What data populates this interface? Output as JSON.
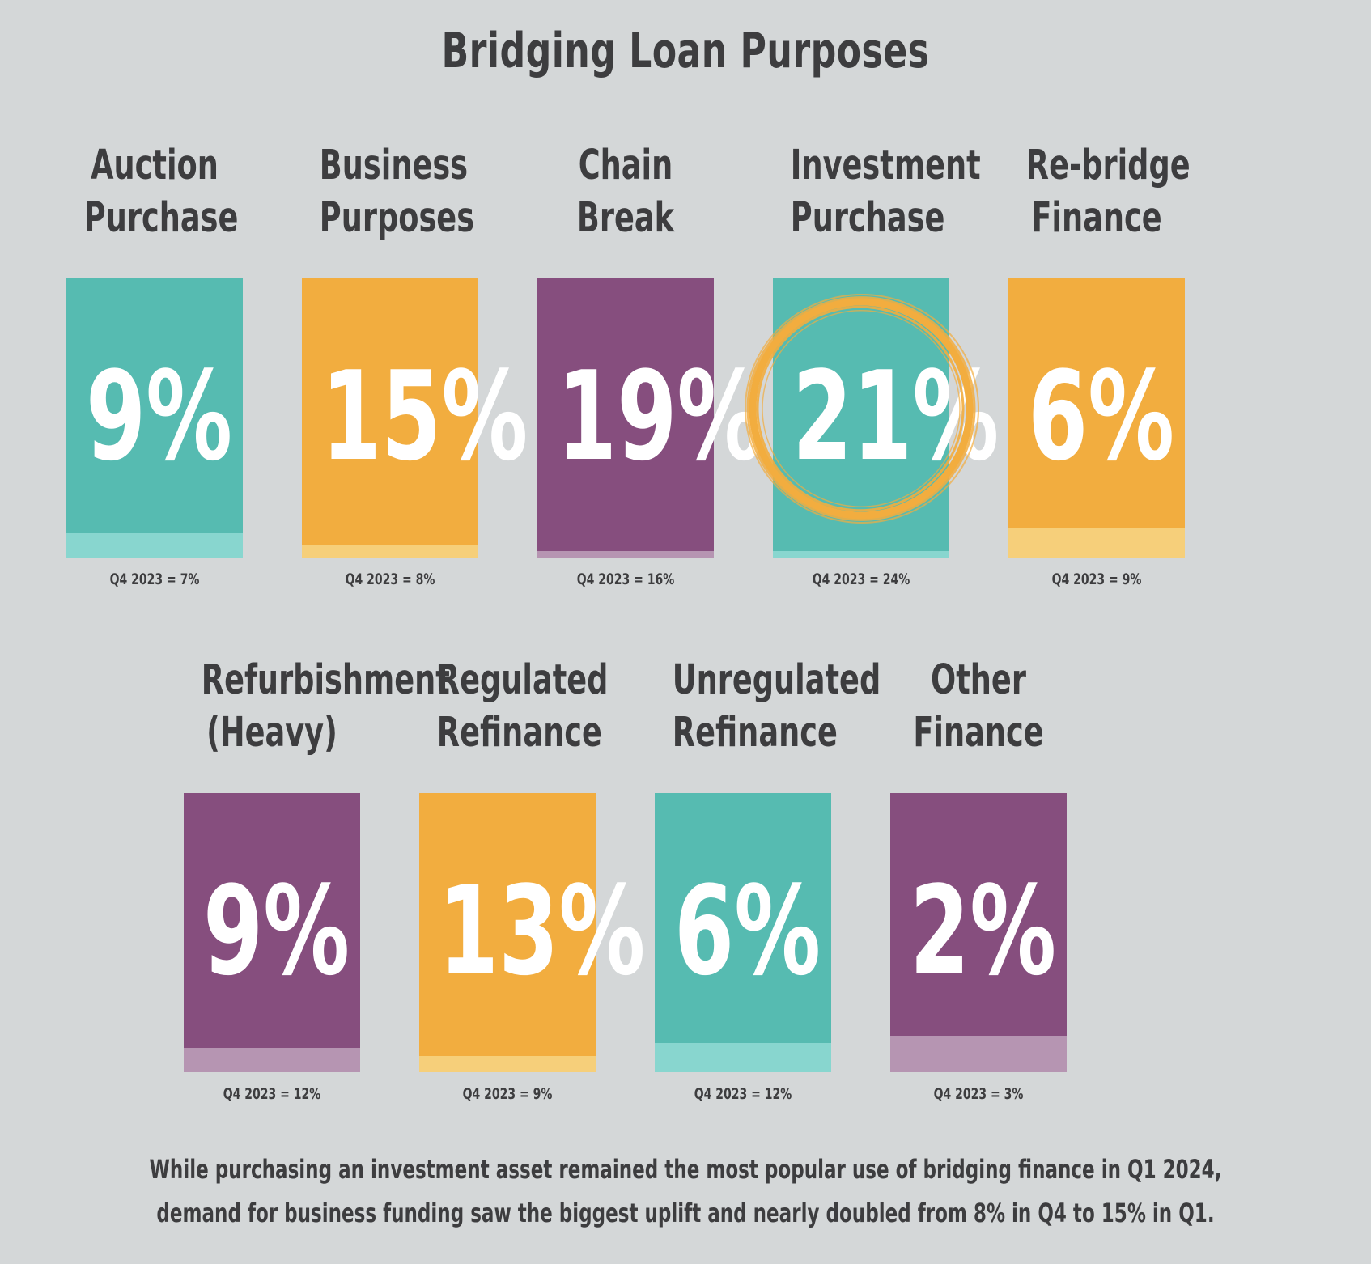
{
  "title": "Bridging Loan Purposes",
  "footnote": [
    "While purchasing an investment asset remained the most popular use of bridging finance in Q1 2024,",
    "demand for business funding saw the biggest uplift and nearly doubled from 8% in Q4 to 15% in Q1."
  ],
  "colors": {
    "teal": "#56bbb1",
    "teal_light": "#88d6cf",
    "orange": "#f2ad3f",
    "orange_light": "#f6cf7a",
    "purple": "#864e7e",
    "purple_light": "#b695b2",
    "highlight_ring": "#f2ad3f",
    "background": "#d4d7d8",
    "text": "#3d3d3f"
  },
  "highlight": "Investment Purchase",
  "chart_data": {
    "type": "bar",
    "title": "Bridging Loan Purposes",
    "unit": "%",
    "categories": [
      "Auction Purchase",
      "Business Purposes",
      "Chain Break",
      "Investment Purchase",
      "Re-bridge Finance",
      "Refurbishment (Heavy)",
      "Regulated Refinance",
      "Unregulated Refinance",
      "Other Finance"
    ],
    "label_lines": [
      [
        "Auction",
        "Purchase"
      ],
      [
        "Business",
        "Purposes"
      ],
      [
        "Chain",
        "Break"
      ],
      [
        "Investment",
        "Purchase"
      ],
      [
        "Re-bridge",
        "Finance"
      ],
      [
        "Refurbishment",
        "(Heavy)"
      ],
      [
        "Regulated",
        "Refinance"
      ],
      [
        "Unregulated",
        "Refinance"
      ],
      [
        "Other",
        "Finance"
      ]
    ],
    "values": [
      9,
      15,
      19,
      21,
      6,
      9,
      13,
      6,
      2
    ],
    "value_labels": [
      "9%",
      "15%",
      "19%",
      "21%",
      "6%",
      "9%",
      "13%",
      "6%",
      "2%"
    ],
    "q4_2023_values": [
      7,
      8,
      16,
      24,
      9,
      12,
      9,
      12,
      3
    ],
    "q4_2023_labels": [
      "Q4 2023 = 7%",
      "Q4 2023 = 8%",
      "Q4 2023 = 16%",
      "Q4 2023 = 24%",
      "Q4 2023 = 9%",
      "Q4 2023 = 12%",
      "Q4 2023 = 9%",
      "Q4 2023 = 12%",
      "Q4 2023 = 3%"
    ],
    "color_keys": [
      "teal",
      "orange",
      "purple",
      "teal",
      "orange",
      "purple",
      "orange",
      "teal",
      "purple"
    ]
  }
}
